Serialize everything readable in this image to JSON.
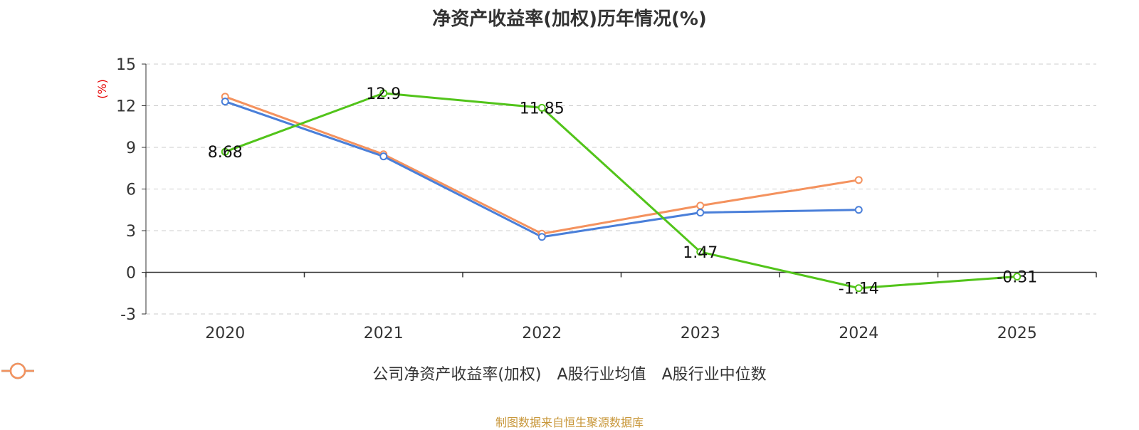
{
  "chart_data": {
    "type": "line",
    "title": "净资产收益率(加权)历年情况(%)",
    "ylabel": "(%)",
    "xlabel": "",
    "categories": [
      "2020",
      "2021",
      "2022",
      "2023",
      "2024",
      "2025"
    ],
    "ylim": [
      -3,
      15
    ],
    "yticks": [
      -3,
      0,
      3,
      6,
      9,
      12,
      15
    ],
    "grid": true,
    "legend_position": "bottom",
    "series": [
      {
        "name": "公司净资产收益率(加权)",
        "color": "#52c41a",
        "values": [
          8.68,
          12.9,
          11.85,
          1.47,
          -1.14,
          -0.31
        ],
        "labels": [
          "8.68",
          "12.9",
          "11.85",
          "1.47",
          "-1.14",
          "-0.31"
        ]
      },
      {
        "name": "A股行业均值",
        "color": "#4a7fd9",
        "values": [
          12.3,
          8.35,
          2.55,
          4.3,
          4.5,
          null
        ]
      },
      {
        "name": "A股行业中位数",
        "color": "#f4925e",
        "values": [
          12.65,
          8.5,
          2.78,
          4.8,
          6.65,
          null
        ]
      }
    ]
  },
  "source_note": "制图数据来自恒生聚源数据库"
}
